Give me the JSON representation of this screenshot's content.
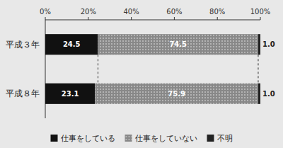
{
  "chart_data": {
    "type": "bar",
    "orientation": "horizontal",
    "stacked": true,
    "categories": [
      "平成３年",
      "平成８年"
    ],
    "series": [
      {
        "name": "仕事をしている",
        "color": "#111111",
        "values": [
          24.5,
          23.1
        ]
      },
      {
        "name": "仕事をしていない",
        "color": "#888888",
        "values": [
          74.5,
          75.9
        ]
      },
      {
        "name": "不明",
        "color": "#222222",
        "values": [
          1.0,
          1.0
        ],
        "value_labels": [
          "1.0",
          "1.0"
        ]
      }
    ],
    "xlim": [
      0,
      100
    ],
    "xticks": [
      {
        "value": 0,
        "label": "0%"
      },
      {
        "value": 20,
        "label": "20%"
      },
      {
        "value": 40,
        "label": "40%"
      },
      {
        "value": 60,
        "label": "60%"
      },
      {
        "value": 80,
        "label": "80%"
      },
      {
        "value": 100,
        "label": "100%"
      }
    ],
    "connector_lines": [
      24.5,
      99.0
    ],
    "data_labels": true,
    "legend": "bottom",
    "grid": false
  }
}
